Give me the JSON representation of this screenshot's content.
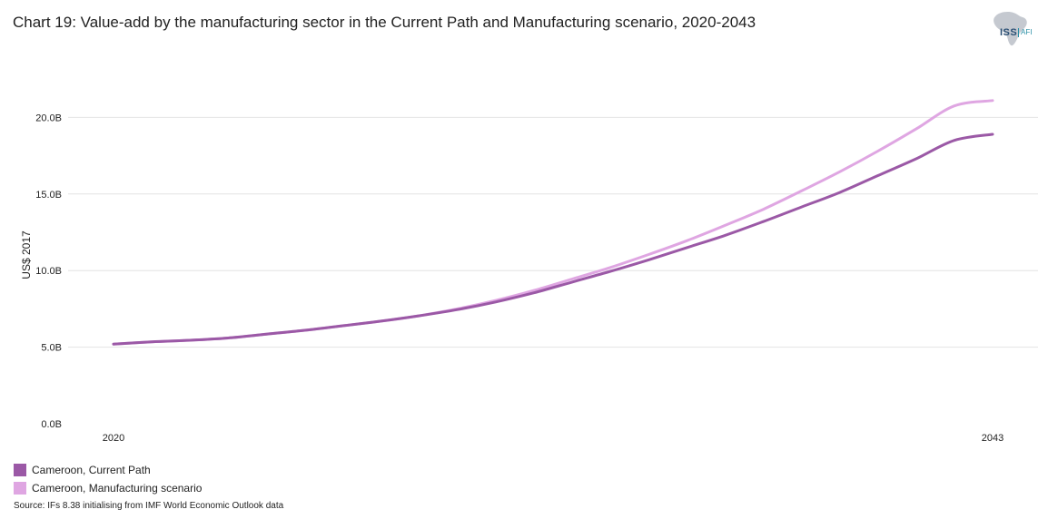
{
  "title": "Chart 19: Value-add by the manufacturing sector in the Current Path and Manufacturing scenario, 2020-2043",
  "logo": {
    "name": "ISS",
    "suffix": "AFI"
  },
  "source": "Source: IFs 8.38 initialising from IMF World Economic Outlook data",
  "colors": {
    "current_path": "#9b59a6",
    "manufacturing": "#dfa6e2",
    "grid": "#e4e4e4",
    "logo_map": "#c5c9d0"
  },
  "chart_data": {
    "type": "line",
    "title": "Chart 19: Value-add by the manufacturing sector in the Current Path and Manufacturing scenario, 2020-2043",
    "xlabel": "",
    "ylabel": "US$ 2017",
    "x": [
      2020,
      2021,
      2022,
      2023,
      2024,
      2025,
      2026,
      2027,
      2028,
      2029,
      2030,
      2031,
      2032,
      2033,
      2034,
      2035,
      2036,
      2037,
      2038,
      2039,
      2040,
      2041,
      2042,
      2043
    ],
    "xlim": [
      2020,
      2043
    ],
    "x_tick_labels": [
      "2020",
      "2043"
    ],
    "ylim": [
      0,
      20
    ],
    "y_ticks": [
      0,
      5,
      10,
      15,
      20
    ],
    "y_tick_labels": [
      "0.0B",
      "5.0B",
      "10.0B",
      "15.0B",
      "20.0B"
    ],
    "grid": true,
    "legend_position": "bottom-left",
    "series": [
      {
        "name": "Cameroon, Current Path",
        "color": "#9b59a6",
        "values": [
          5.2,
          5.35,
          5.45,
          5.6,
          5.85,
          6.1,
          6.4,
          6.7,
          7.05,
          7.45,
          7.95,
          8.55,
          9.25,
          9.95,
          10.7,
          11.5,
          12.3,
          13.2,
          14.15,
          15.1,
          16.2,
          17.3,
          18.5,
          18.9
        ]
      },
      {
        "name": "Cameroon, Manufacturing scenario",
        "color": "#dfa6e2",
        "values": [
          5.2,
          5.35,
          5.45,
          5.6,
          5.85,
          6.1,
          6.4,
          6.7,
          7.05,
          7.5,
          8.05,
          8.7,
          9.45,
          10.2,
          11.05,
          11.95,
          12.95,
          14.0,
          15.2,
          16.45,
          17.8,
          19.25,
          20.75,
          21.1
        ]
      }
    ]
  }
}
